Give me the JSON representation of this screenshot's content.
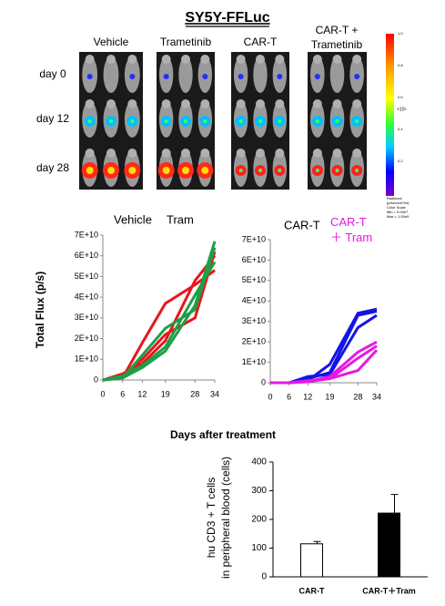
{
  "title": "SY5Y-FFLuc",
  "imaging": {
    "columns": [
      "Vehicle",
      "Trametinib",
      "CAR-T",
      "CAR-T +",
      "Trametinib"
    ],
    "rows": [
      "day 0",
      "day 12",
      "day 28"
    ],
    "colorbar": {
      "ticks": [
        "1.0",
        "0.8",
        "0.6",
        "0.4",
        "0.2"
      ],
      "unit": "×10⁹",
      "legend": [
        "Radiance",
        "(p/sec/cm²/sr)",
        "Color Scale",
        "Min = 5.00e7",
        "Max = 1.00e9"
      ]
    }
  },
  "chart_data": [
    {
      "type": "line",
      "ylabel": "Total Flux (p/s)",
      "xlabel": "Days after treatment",
      "x": [
        0,
        6,
        12,
        19,
        28,
        34
      ],
      "xlim": [
        0,
        34
      ],
      "xticks": [
        0,
        6,
        12,
        19,
        28,
        34
      ],
      "ylim": [
        0,
        70000000000.0
      ],
      "yticks": [
        0,
        {
          "value": 10000000000.0,
          "label": "1E+10"
        },
        {
          "value": 20000000000.0,
          "label": "2E+10"
        },
        {
          "value": 30000000000.0,
          "label": "3E+10"
        },
        {
          "value": 40000000000.0,
          "label": "4E+10"
        },
        {
          "value": 50000000000.0,
          "label": "5E+10"
        },
        {
          "value": 60000000000.0,
          "label": "6E+10"
        },
        {
          "value": 70000000000.0,
          "label": "7E+10"
        }
      ],
      "series": [
        {
          "name": "Vehicle",
          "color": "#e8161b",
          "values": [
            [
              0,
              1000000000.0,
              18000000000.0,
              37000000000.0,
              46000000000.0,
              53000000000.0
            ],
            [
              0,
              2000000000.0,
              10000000000.0,
              22000000000.0,
              30000000000.0,
              62000000000.0
            ],
            [
              0,
              3000000000.0,
              8000000000.0,
              19000000000.0,
              48000000000.0,
              60000000000.0
            ]
          ]
        },
        {
          "name": "Tram",
          "color": "#1e9e48",
          "values": [
            [
              0,
              1000000000.0,
              6000000000.0,
              14000000000.0,
              36000000000.0,
              67000000000.0
            ],
            [
              0,
              2000000000.0,
              7000000000.0,
              16000000000.0,
              41000000000.0,
              57000000000.0
            ],
            [
              0,
              1000000000.0,
              12000000000.0,
              25000000000.0,
              34000000000.0,
              64000000000.0
            ]
          ]
        }
      ]
    },
    {
      "type": "line",
      "x": [
        0,
        6,
        12,
        19,
        28,
        34
      ],
      "xlim": [
        0,
        34
      ],
      "xticks": [
        0,
        6,
        12,
        19,
        28,
        34
      ],
      "ylim": [
        0,
        70000000000.0
      ],
      "yticks": [
        0,
        {
          "value": 10000000000.0,
          "label": "1E+10"
        },
        {
          "value": 20000000000.0,
          "label": "2E+10"
        },
        {
          "value": 30000000000.0,
          "label": "3E+10"
        },
        {
          "value": 40000000000.0,
          "label": "4E+10"
        },
        {
          "value": 50000000000.0,
          "label": "5E+10"
        },
        {
          "value": 60000000000.0,
          "label": "6E+10"
        },
        {
          "value": 70000000000.0,
          "label": "7E+10"
        }
      ],
      "series": [
        {
          "name": "CAR-T",
          "color": "#1414e6",
          "values": [
            [
              0,
              0,
              1000000000.0,
              9000000000.0,
              34000000000.0,
              36000000000.0
            ],
            [
              0,
              0,
              2000000000.0,
              5000000000.0,
              33000000000.0,
              35000000000.0
            ],
            [
              0,
              0,
              3000000000.0,
              4000000000.0,
              27000000000.0,
              33000000000.0
            ]
          ]
        },
        {
          "name": "CAR-T＋ Tram",
          "color": "#e619e0",
          "values": [
            [
              0,
              0,
              500000000.0,
              3000000000.0,
              15000000000.0,
              20000000000.0
            ],
            [
              0,
              0,
              1000000000.0,
              2000000000.0,
              12000000000.0,
              18000000000.0
            ],
            [
              0,
              0,
              500000000.0,
              2000000000.0,
              6000000000.0,
              16000000000.0
            ]
          ]
        }
      ]
    },
    {
      "type": "bar",
      "ylabel": [
        "hu CD3 + T cells",
        "in peripheral blood (cells)"
      ],
      "categories": [
        "CAR-T",
        "CAR-T＋Tram"
      ],
      "values": [
        115,
        222
      ],
      "errors": [
        8,
        65
      ],
      "colors": [
        "#ffffff",
        "#000000"
      ],
      "ylim": [
        0,
        400
      ],
      "yticks": [
        0,
        100,
        200,
        300,
        400
      ]
    }
  ]
}
